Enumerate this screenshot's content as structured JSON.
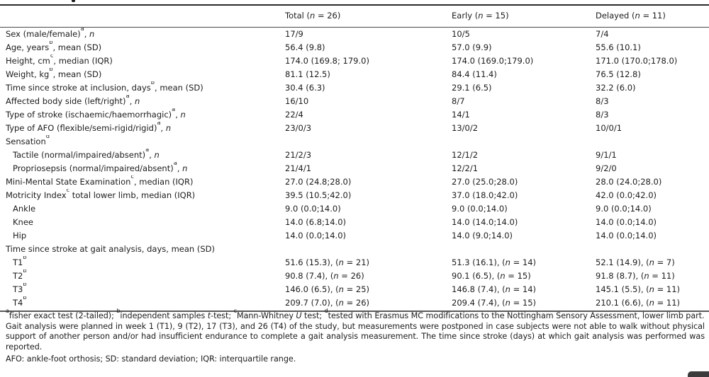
{
  "page": {
    "background": "#ffffff",
    "text_color": "#1c1c1c"
  },
  "table": {
    "header": [
      "",
      "Total (*n* = 26)",
      "Early (*n* = 15)",
      "Delayed (*n* = 11)"
    ],
    "rows": [
      {
        "label": "Sex (male/female)^a^, *n*",
        "indent": false,
        "values": [
          "17/9",
          "10/5",
          "7/4"
        ]
      },
      {
        "label": "Age, years^b^, mean (SD)",
        "indent": false,
        "values": [
          "56.4 (9.8)",
          "57.0 (9.9)",
          "55.6 (10.1)"
        ]
      },
      {
        "label": "Height, cm^c^, median (IQR)",
        "indent": false,
        "values": [
          "174.0 (169.8; 179.0)",
          "174.0 (169.0;179.0)",
          "171.0 (170.0;178.0)"
        ]
      },
      {
        "label": "Weight, kg^b^, mean (SD)",
        "indent": false,
        "values": [
          "81.1 (12.5)",
          "84.4 (11.4)",
          "76.5 (12.8)"
        ]
      },
      {
        "label": "Time since stroke at inclusion, days^b^, mean (SD)",
        "indent": false,
        "values": [
          "30.4 (6.3)",
          "29.1 (6.5)",
          "32.2 (6.0)"
        ]
      },
      {
        "label": "Affected body side (left/right)^a^, *n*",
        "indent": false,
        "values": [
          "16/10",
          "8/7",
          "8/3"
        ]
      },
      {
        "label": "Type of stroke (ischaemic/haemorrhagic)^a^, *n*",
        "indent": false,
        "values": [
          "22/4",
          "14/1",
          "8/3"
        ]
      },
      {
        "label": "Type of AFO (flexible/semi-rigid/rigid)^a^, *n*",
        "indent": false,
        "values": [
          "23/0/3",
          "13/0/2",
          "10/0/1"
        ]
      },
      {
        "label": "Sensation^d^",
        "indent": false,
        "values": [
          "",
          "",
          ""
        ]
      },
      {
        "label": "Tactile (normal/impaired/absent)^a^, *n*",
        "indent": true,
        "values": [
          "21/2/3",
          "12/1/2",
          "9/1/1"
        ]
      },
      {
        "label": "Propriosepsis (normal/impaired/absent)^a^, *n*",
        "indent": true,
        "values": [
          "21/4/1",
          "12/2/1",
          "9/2/0"
        ]
      },
      {
        "label": "Mini-Mental State Examination^c^, median (IQR)",
        "indent": false,
        "values": [
          "27.0 (24.8;28.0)",
          "27.0 (25.0;28.0)",
          "28.0 (24.0;28.0)"
        ]
      },
      {
        "label": "Motricity Index^c^ total lower limb, median (IQR)",
        "indent": false,
        "values": [
          "39.5 (10.5;42.0)",
          "37.0 (18.0;42.0)",
          "42.0 (0.0;42.0)"
        ]
      },
      {
        "label": "Ankle",
        "indent": true,
        "values": [
          "9.0 (0.0;14.0)",
          "9.0 (0.0;14.0)",
          "9.0 (0.0;14.0)"
        ]
      },
      {
        "label": "Knee",
        "indent": true,
        "values": [
          "14.0 (6.8;14.0)",
          "14.0 (14.0;14.0)",
          "14.0 (0.0;14.0)"
        ]
      },
      {
        "label": "Hip",
        "indent": true,
        "values": [
          "14.0 (0.0;14.0)",
          "14.0 (9.0;14.0)",
          "14.0 (0.0;14.0)"
        ]
      },
      {
        "label": "Time since stroke at gait analysis, days, mean (SD)",
        "indent": false,
        "values": [
          "",
          "",
          ""
        ]
      },
      {
        "label": "T1^b^",
        "indent": true,
        "values": [
          "51.6 (15.3), (*n* = 21)",
          "51.3 (16.1), (*n* = 14)",
          "52.1 (14.9), (*n* = 7)"
        ]
      },
      {
        "label": "T2^b^",
        "indent": true,
        "values": [
          "90.8 (7.4), (*n* = 26)",
          "90.1 (6.5), (*n* = 15)",
          "91.8 (8.7), (*n* = 11)"
        ]
      },
      {
        "label": "T3^b^",
        "indent": true,
        "values": [
          "146.0 (6.5), (*n* = 25)",
          "146.8 (7.4), (*n* = 14)",
          "145.1 (5.5), (*n* = 11)"
        ]
      },
      {
        "label": "T4^b^",
        "indent": true,
        "values": [
          "209.7 (7.0), (*n* = 26)",
          "209.4 (7.4), (*n* = 15)",
          "210.1 (6.6), (*n* = 11)"
        ]
      }
    ]
  },
  "footnotes": [
    "^a^fisher exact test (2-tailed); ^b^independent samples *t*-test; ^c^Mann-Whitney *U* test; ^d^tested with Erasmus MC modifications to the Nottingham Sensory Assessment, lower limb part.",
    "Gait analysis were planned in week 1 (T1), 9 (T2), 17 (T3), and 26 (T4) of the study, but measurements were postponed in case subjects were not able to walk without physical support of another person and/or had insufficient endurance to complete a gait analysis measurement. The time since stroke (days) at which gait analysis was performed was reported.",
    "AFO: ankle-foot orthosis; SD: standard deviation; IQR: interquartile range."
  ],
  "corner_button": {
    "color": "#3b3b3d"
  }
}
